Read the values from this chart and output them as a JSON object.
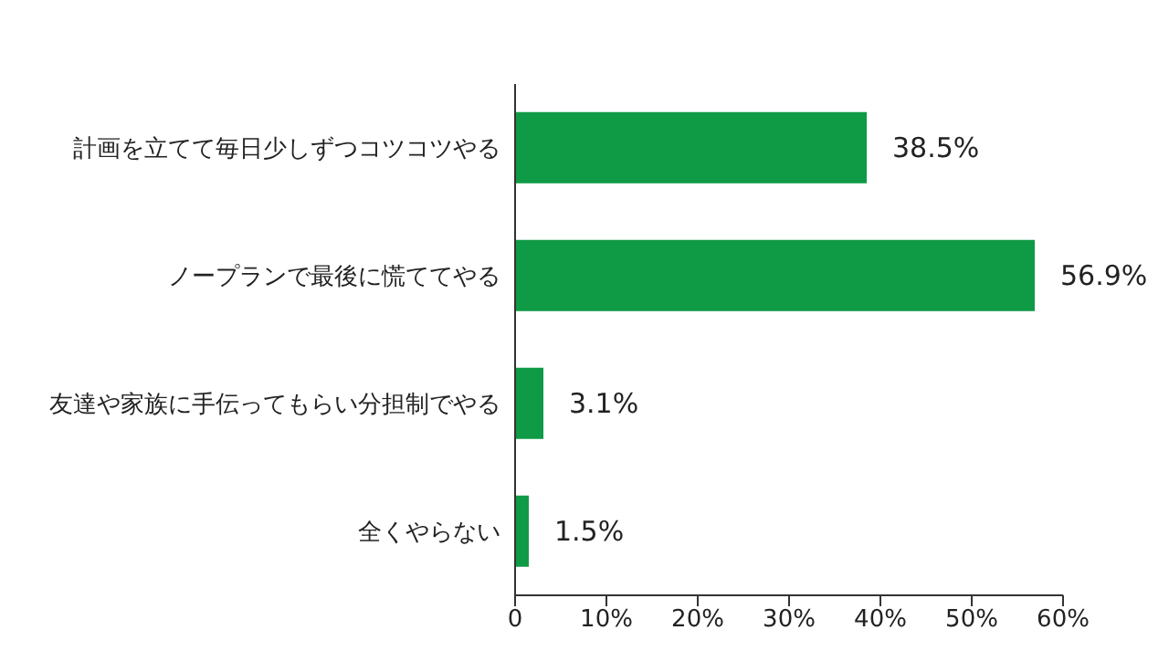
{
  "chart_data": {
    "type": "bar",
    "orientation": "horizontal",
    "categories": [
      "計画を立てて毎日少しずつコツコツやる",
      "ノープランで最後に慌ててやる",
      "友達や家族に手伝ってもらい分担制でやる",
      "全くやらない"
    ],
    "values": [
      38.5,
      56.9,
      3.1,
      1.5
    ],
    "value_labels": [
      "38.5%",
      "56.9%",
      "3.1%",
      "1.5%"
    ],
    "color": "#0f9a46",
    "xlim": [
      0,
      60
    ],
    "xticks": [
      0,
      {
        "value": 10,
        "label": "10%"
      },
      {
        "value": 20,
        "label": "20%"
      },
      {
        "value": 30,
        "label": "30%"
      },
      {
        "value": 40,
        "label": "40%"
      },
      {
        "value": 50,
        "label": "50%"
      },
      {
        "value": 60,
        "label": "60%"
      }
    ],
    "grid": false
  }
}
